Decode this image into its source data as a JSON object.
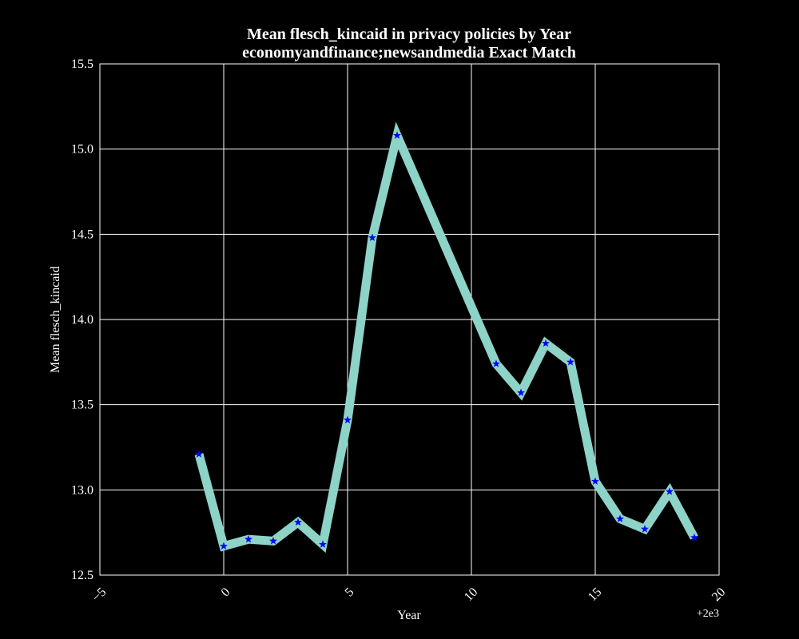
{
  "chart_data": {
    "type": "line",
    "title": "Mean flesch_kincaid in privacy policies by Year",
    "subtitle": "economyandfinance;newsandmedia Exact Match",
    "xlabel": "Year",
    "ylabel": "Mean flesch_kincaid",
    "x_offset_label": "+2e3",
    "xlim": [
      -5,
      20
    ],
    "ylim": [
      12.5,
      15.5
    ],
    "x_ticks": [
      "−5",
      "0",
      "5",
      "10",
      "15",
      "20"
    ],
    "y_ticks": [
      "12.5",
      "13.0",
      "13.5",
      "14.0",
      "14.5",
      "15.0",
      "15.5"
    ],
    "grid": true,
    "line_color": "#8dd3c7",
    "marker_color": "#0000ff",
    "marker": "star",
    "x": [
      -1,
      0,
      1,
      2,
      3,
      4,
      5,
      6,
      7,
      11,
      12,
      13,
      14,
      15,
      16,
      17,
      18,
      19
    ],
    "y": [
      13.21,
      12.67,
      12.71,
      12.7,
      12.81,
      12.68,
      13.41,
      14.48,
      15.08,
      13.74,
      13.57,
      13.86,
      13.75,
      13.05,
      12.83,
      12.77,
      12.99,
      12.72
    ]
  }
}
